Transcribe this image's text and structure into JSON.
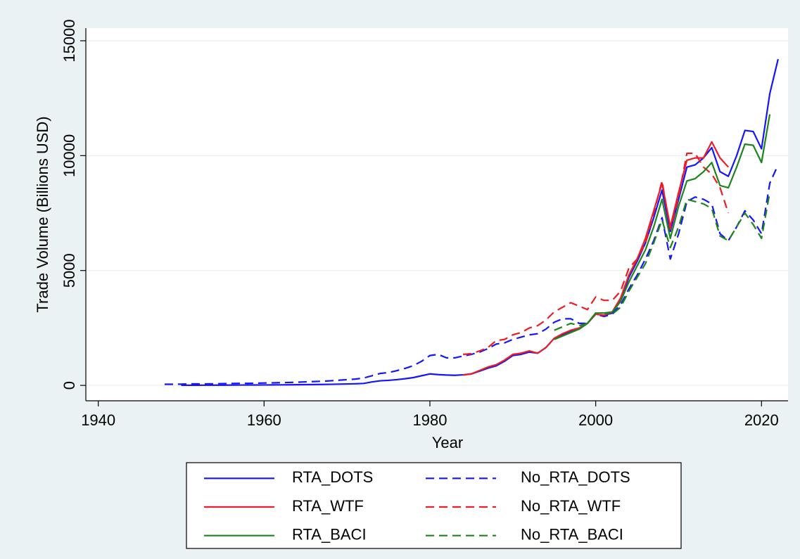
{
  "chart_data": {
    "type": "line",
    "x_label": "Year",
    "y_label": "Trade Volume (Billions USD)",
    "x": [
      1948,
      1949,
      1950,
      1951,
      1952,
      1953,
      1954,
      1955,
      1956,
      1957,
      1958,
      1959,
      1960,
      1961,
      1962,
      1963,
      1964,
      1965,
      1966,
      1967,
      1968,
      1969,
      1970,
      1971,
      1972,
      1973,
      1974,
      1975,
      1976,
      1977,
      1978,
      1979,
      1980,
      1981,
      1982,
      1983,
      1984,
      1985,
      1986,
      1987,
      1988,
      1989,
      1990,
      1991,
      1992,
      1993,
      1994,
      1995,
      1996,
      1997,
      1998,
      1999,
      2000,
      2001,
      2002,
      2003,
      2004,
      2005,
      2006,
      2007,
      2008,
      2009,
      2010,
      2011,
      2012,
      2013,
      2014,
      2015,
      2016,
      2017,
      2018,
      2019,
      2020,
      2021,
      2022
    ],
    "series": [
      {
        "name": "RTA_DOTS",
        "color": "#1414ff",
        "dashed": false,
        "values": [
          null,
          null,
          5,
          8,
          8,
          9,
          10,
          12,
          14,
          16,
          16,
          18,
          20,
          22,
          24,
          27,
          30,
          34,
          38,
          42,
          48,
          55,
          62,
          70,
          85,
          150,
          200,
          220,
          250,
          290,
          340,
          420,
          500,
          470,
          450,
          440,
          460,
          500,
          620,
          750,
          850,
          1050,
          1300,
          1350,
          1450,
          1400,
          1650,
          2050,
          2200,
          2350,
          2450,
          2700,
          3100,
          3050,
          3150,
          3700,
          4700,
          5400,
          6200,
          7300,
          8500,
          6700,
          8100,
          9500,
          9600,
          9900,
          10350,
          9300,
          9100,
          10000,
          11100,
          11050,
          10300,
          12700,
          14200
        ]
      },
      {
        "name": "No_RTA_DOTS",
        "color": "#1414ff",
        "dashed": true,
        "values": [
          50,
          50,
          55,
          65,
          65,
          66,
          70,
          78,
          85,
          90,
          88,
          95,
          105,
          110,
          118,
          128,
          140,
          155,
          168,
          180,
          200,
          225,
          250,
          275,
          320,
          420,
          520,
          560,
          640,
          740,
          860,
          1050,
          1300,
          1350,
          1200,
          1200,
          1280,
          1350,
          1450,
          1600,
          1800,
          1850,
          2000,
          2100,
          2200,
          2250,
          2450,
          2750,
          2900,
          2900,
          2700,
          2700,
          3100,
          3000,
          3100,
          3500,
          4200,
          4800,
          5500,
          6300,
          7300,
          5500,
          6600,
          8000,
          8200,
          8100,
          7900,
          6600,
          6300,
          6900,
          7600,
          7200,
          6600,
          8800,
          9600
        ]
      },
      {
        "name": "RTA_WTF",
        "color": "#ee1c24",
        "dashed": false,
        "values": [
          null,
          null,
          null,
          null,
          null,
          null,
          null,
          null,
          null,
          null,
          null,
          null,
          null,
          null,
          null,
          null,
          null,
          null,
          null,
          null,
          null,
          null,
          null,
          null,
          null,
          null,
          null,
          null,
          null,
          null,
          null,
          null,
          null,
          null,
          null,
          null,
          450,
          500,
          650,
          800,
          900,
          1100,
          1350,
          1400,
          1500,
          1400,
          1650,
          2050,
          2250,
          2400,
          2500,
          2700,
          3100,
          3050,
          3200,
          3800,
          4800,
          5500,
          6400,
          7600,
          8800,
          6900,
          8400,
          9800,
          9900,
          9900,
          10600,
          9900,
          9500,
          null,
          null,
          null,
          null,
          null,
          null
        ]
      },
      {
        "name": "No_RTA_WTF",
        "color": "#ee1c24",
        "dashed": true,
        "values": [
          null,
          null,
          null,
          null,
          null,
          null,
          null,
          null,
          null,
          null,
          null,
          null,
          null,
          null,
          null,
          null,
          null,
          null,
          null,
          null,
          null,
          null,
          null,
          null,
          null,
          null,
          null,
          null,
          null,
          null,
          null,
          null,
          null,
          null,
          null,
          null,
          1350,
          1380,
          1500,
          1650,
          1950,
          2000,
          2200,
          2300,
          2500,
          2600,
          2850,
          3200,
          3400,
          3600,
          3450,
          3300,
          3850,
          3700,
          3700,
          4100,
          5100,
          5500,
          6200,
          7500,
          8900,
          6800,
          8200,
          10100,
          10100,
          9500,
          9200,
          8600,
          7500,
          null,
          null,
          null,
          null,
          null,
          null
        ]
      },
      {
        "name": "RTA_BACI",
        "color": "#1e841e",
        "dashed": false,
        "values": [
          null,
          null,
          null,
          null,
          null,
          null,
          null,
          null,
          null,
          null,
          null,
          null,
          null,
          null,
          null,
          null,
          null,
          null,
          null,
          null,
          null,
          null,
          null,
          null,
          null,
          null,
          null,
          null,
          null,
          null,
          null,
          null,
          null,
          null,
          null,
          null,
          null,
          null,
          null,
          null,
          null,
          null,
          null,
          null,
          null,
          null,
          null,
          2000,
          2150,
          2300,
          2450,
          2700,
          3150,
          3150,
          3200,
          3650,
          4500,
          5200,
          5900,
          6900,
          8100,
          6400,
          7800,
          8900,
          9000,
          9300,
          9700,
          8700,
          8600,
          9500,
          10500,
          10450,
          9700,
          11800,
          null
        ]
      },
      {
        "name": "No_RTA_BACI",
        "color": "#1e841e",
        "dashed": true,
        "values": [
          null,
          null,
          null,
          null,
          null,
          null,
          null,
          null,
          null,
          null,
          null,
          null,
          null,
          null,
          null,
          null,
          null,
          null,
          null,
          null,
          null,
          null,
          null,
          null,
          null,
          null,
          null,
          null,
          null,
          null,
          null,
          null,
          null,
          null,
          null,
          null,
          null,
          null,
          null,
          null,
          null,
          null,
          null,
          null,
          null,
          null,
          null,
          2400,
          2550,
          2700,
          2600,
          2700,
          3150,
          3150,
          3100,
          3400,
          4100,
          4700,
          5300,
          6200,
          7200,
          6000,
          6900,
          8100,
          8000,
          7900,
          7700,
          6500,
          6300,
          6900,
          7500,
          7000,
          6400,
          8400,
          null
        ]
      }
    ],
    "xlim": [
      1938.5,
      2023.2
    ],
    "ylim": [
      -670,
      15550
    ],
    "xticks": [
      1940,
      1960,
      1980,
      2000,
      2020
    ],
    "yticks": [
      0,
      5000,
      10000,
      15000
    ],
    "grid": true,
    "legend": "bottom"
  }
}
